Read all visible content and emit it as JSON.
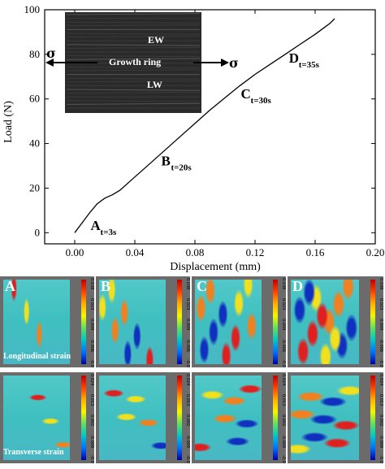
{
  "chart_data": {
    "type": "line",
    "xlabel": "Displacement (mm)",
    "ylabel": "Load (N)",
    "xlim": [
      -0.02,
      0.2
    ],
    "ylim": [
      -5,
      100
    ],
    "xticks": [
      "0.00",
      "0.04",
      "0.08",
      "0.12",
      "0.16",
      "0.20"
    ],
    "yticks": [
      "0",
      "20",
      "40",
      "60",
      "80",
      "100"
    ],
    "series": [
      {
        "x": [
          0.0,
          0.005,
          0.01,
          0.015,
          0.02,
          0.025,
          0.03,
          0.04,
          0.05,
          0.06,
          0.07,
          0.08,
          0.09,
          0.1,
          0.11,
          0.12,
          0.13,
          0.14,
          0.15,
          0.16,
          0.165,
          0.17,
          0.173
        ],
        "y": [
          0,
          4.5,
          9,
          13,
          15.5,
          17,
          19,
          25,
          31,
          37,
          43,
          49,
          55,
          60.5,
          66,
          71,
          75.5,
          80,
          84.5,
          89,
          91.5,
          94,
          96
        ]
      }
    ],
    "points": [
      {
        "label": "A",
        "sub": "t=3s",
        "x": 0.003,
        "y": 2
      },
      {
        "label": "B",
        "sub": "t=20s",
        "x": 0.05,
        "y": 31
      },
      {
        "label": "C",
        "sub": "t=30s",
        "x": 0.103,
        "y": 61
      },
      {
        "label": "D",
        "sub": "t=35s",
        "x": 0.135,
        "y": 77
      }
    ]
  },
  "inset": {
    "ew_label": "EW",
    "growth_ring_label": "Growth ring",
    "lw_label": "LW",
    "sigma_left": "σ",
    "sigma_right": "σ"
  },
  "strain_maps": {
    "longitudinal": {
      "label": "Longitudinal strain",
      "scale": [
        "0.038",
        "0.023",
        "0.009",
        "-0.006",
        "-0.021"
      ],
      "panels": [
        "A",
        "B",
        "C",
        "D"
      ]
    },
    "transverse": {
      "label": "Transverse strain",
      "scale": [
        "0.024",
        "0.013",
        "0.002",
        "-0.009",
        "-0.020"
      ]
    }
  },
  "colors": {
    "line": "#000000",
    "inset_bg": "#2a2a2a",
    "map_base": "#3fbfc0",
    "map_high": "#e02020",
    "map_mid": "#f0e020",
    "map_low": "#1030c0"
  }
}
